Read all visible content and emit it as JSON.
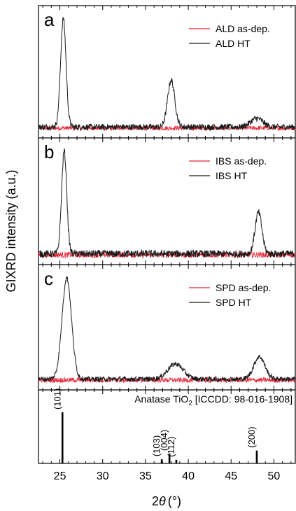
{
  "chart_data": {
    "type": "line",
    "ylabel": "GIXRD intensity (a.u.)",
    "xlabel_prefix": "2",
    "xlabel_symbol": "θ",
    "xlabel_unit": "(°)",
    "xlim": [
      22.5,
      52.5
    ],
    "xticks": [
      25,
      30,
      35,
      40,
      45,
      50
    ],
    "colors": {
      "as_dep": "#e8283a",
      "ht": "#1a1a1a"
    },
    "panels": [
      {
        "letter": "a",
        "series": [
          {
            "name": "ALD as-dep.",
            "color": "#e8283a",
            "noise": 0.06,
            "peaks": []
          },
          {
            "name": "ALD HT",
            "color": "#1a1a1a",
            "noise": 0.08,
            "peaks": [
              {
                "x": 25.4,
                "h": 1.0,
                "w": 0.32
              },
              {
                "x": 38.0,
                "h": 0.43,
                "w": 0.42
              },
              {
                "x": 48.0,
                "h": 0.08,
                "w": 0.7
              }
            ]
          }
        ]
      },
      {
        "letter": "b",
        "series": [
          {
            "name": "IBS as-dep.",
            "color": "#e8283a",
            "noise": 0.08,
            "peaks": []
          },
          {
            "name": "IBS HT",
            "color": "#1a1a1a",
            "noise": 0.1,
            "peaks": [
              {
                "x": 25.5,
                "h": 1.0,
                "w": 0.3
              },
              {
                "x": 48.2,
                "h": 0.4,
                "w": 0.4
              }
            ]
          }
        ]
      },
      {
        "letter": "c",
        "series": [
          {
            "name": "SPD as-dep.",
            "color": "#e8283a",
            "noise": 0.07,
            "peaks": []
          },
          {
            "name": "SPD HT",
            "color": "#1a1a1a",
            "noise": 0.07,
            "peaks": [
              {
                "x": 25.8,
                "h": 1.0,
                "w": 0.55
              },
              {
                "x": 38.5,
                "h": 0.15,
                "w": 0.9
              },
              {
                "x": 48.3,
                "h": 0.22,
                "w": 0.65
              }
            ]
          }
        ]
      }
    ],
    "reference": {
      "title_main": "Anatase TiO",
      "title_sub": "2",
      "title_tail": " [ICCDD: 98-016-1908]",
      "lines": [
        {
          "x": 25.3,
          "h": 1.0,
          "label": "(101)"
        },
        {
          "x": 36.9,
          "h": 0.08,
          "label": "(103)"
        },
        {
          "x": 37.8,
          "h": 0.19,
          "label": "(004)"
        },
        {
          "x": 38.6,
          "h": 0.07,
          "label": "(112)"
        },
        {
          "x": 48.0,
          "h": 0.25,
          "label": "(200)"
        }
      ]
    }
  }
}
